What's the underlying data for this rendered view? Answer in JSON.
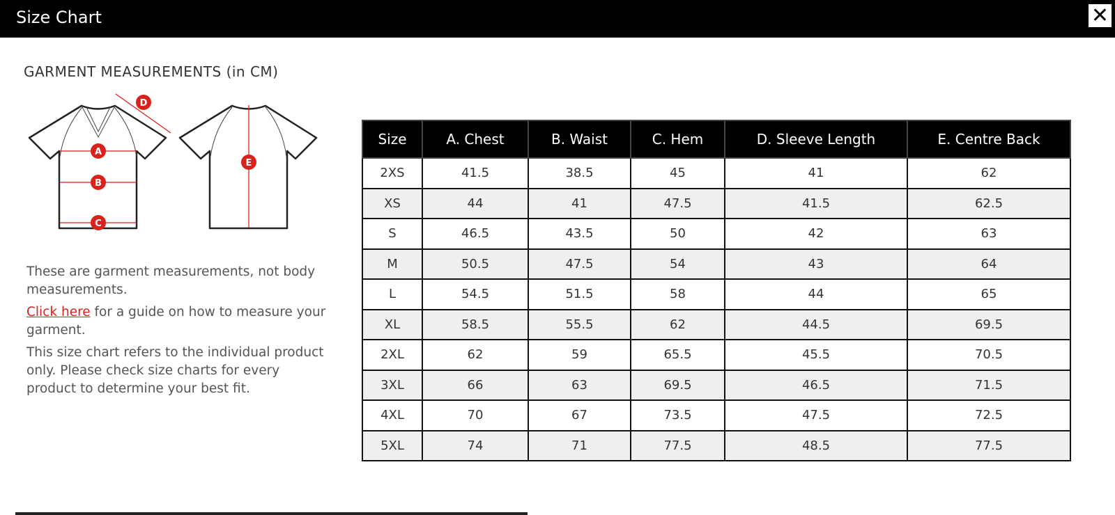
{
  "header": {
    "title": "Size Chart",
    "close_label": "✕"
  },
  "heading": "GARMENT MEASUREMENTS (in CM)",
  "diagram": {
    "labels": [
      "A",
      "B",
      "C",
      "D",
      "E"
    ],
    "accent": "#d9221c"
  },
  "notes": {
    "p1": "These are garment measurements, not body measurements.",
    "link": "Click here",
    "p2_rest": " for a guide on how to measure your garment.",
    "p3": "This size chart refers to the individual product only. Please check size charts for every product to determine your best fit."
  },
  "table": {
    "columns": [
      "Size",
      "A. Chest",
      "B. Waist",
      "C. Hem",
      "D. Sleeve Length",
      "E. Centre Back"
    ],
    "rows": [
      [
        "2XS",
        "41.5",
        "38.5",
        "45",
        "41",
        "62"
      ],
      [
        "XS",
        "44",
        "41",
        "47.5",
        "41.5",
        "62.5"
      ],
      [
        "S",
        "46.5",
        "43.5",
        "50",
        "42",
        "63"
      ],
      [
        "M",
        "50.5",
        "47.5",
        "54",
        "43",
        "64"
      ],
      [
        "L",
        "54.5",
        "51.5",
        "58",
        "44",
        "65"
      ],
      [
        "XL",
        "58.5",
        "55.5",
        "62",
        "44.5",
        "69.5"
      ],
      [
        "2XL",
        "62",
        "59",
        "65.5",
        "45.5",
        "70.5"
      ],
      [
        "3XL",
        "66",
        "63",
        "69.5",
        "46.5",
        "71.5"
      ],
      [
        "4XL",
        "70",
        "67",
        "73.5",
        "47.5",
        "72.5"
      ],
      [
        "5XL",
        "74",
        "71",
        "77.5",
        "48.5",
        "77.5"
      ]
    ]
  }
}
